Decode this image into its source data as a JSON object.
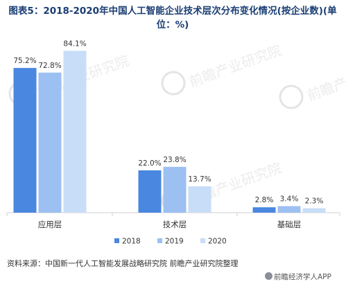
{
  "title": "图表5：2018-2020年中国人工智能企业技术层次分布变化情况(按企业数)(单位：%)",
  "source": "资料来源：中国新一代人工智能发展战略研究院 前瞻产业研究院整理",
  "brand": "前瞻经济学人APP",
  "watermark": "前瞻产业研究院",
  "colors": {
    "2018": "#4a87e0",
    "2019": "#9cc0f2",
    "2020": "#c8ddf7",
    "axis": "#cfcfcf",
    "title": "#1a3d73"
  },
  "chart_data": {
    "type": "bar",
    "title": "图表5：2018-2020年中国人工智能企业技术层次分布变化情况(按企业数)(单位：%)",
    "categories": [
      "应用层",
      "技术层",
      "基础层"
    ],
    "series": [
      {
        "name": "2018",
        "values": [
          75.2,
          22.0,
          2.8
        ],
        "labels": [
          "75.2%",
          "22.0%",
          "2.8%"
        ]
      },
      {
        "name": "2019",
        "values": [
          72.8,
          23.8,
          3.4
        ],
        "labels": [
          "72.8%",
          "23.8%",
          "3.4%"
        ]
      },
      {
        "name": "2020",
        "values": [
          84.1,
          13.7,
          2.3
        ],
        "labels": [
          "84.1%",
          "13.7%",
          "2.3%"
        ]
      }
    ],
    "ylim": [
      0,
      90
    ],
    "grid": false,
    "legend": "bottom"
  }
}
